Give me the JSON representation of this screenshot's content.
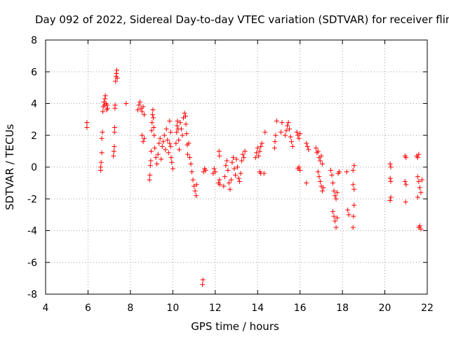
{
  "chart_data": {
    "type": "scatter",
    "title": "Day 092 of 2022, Sidereal Day-to-day VTEC variation (SDTVAR) for receiver flin",
    "xlabel": "GPS time / hours",
    "ylabel": "SDTVAR / TECUs",
    "xlim": [
      4,
      22
    ],
    "ylim": [
      -8,
      8
    ],
    "xticks": [
      4,
      6,
      8,
      10,
      12,
      14,
      16,
      18,
      20,
      22
    ],
    "yticks": [
      -8,
      -6,
      -4,
      -2,
      0,
      2,
      4,
      6,
      8
    ],
    "grid": true,
    "marker": "+",
    "color": "#ff0000",
    "points": [
      [
        5.95,
        2.5
      ],
      [
        5.95,
        2.8
      ],
      [
        6.6,
        0.0
      ],
      [
        6.6,
        -0.2
      ],
      [
        6.62,
        0.3
      ],
      [
        6.65,
        0.9
      ],
      [
        6.65,
        1.8
      ],
      [
        6.68,
        2.2
      ],
      [
        6.7,
        3.5
      ],
      [
        6.72,
        3.8
      ],
      [
        6.75,
        4.1
      ],
      [
        6.78,
        3.9
      ],
      [
        6.8,
        4.3
      ],
      [
        6.82,
        4.5
      ],
      [
        6.85,
        4.0
      ],
      [
        6.88,
        3.6
      ],
      [
        6.9,
        3.9
      ],
      [
        6.92,
        3.7
      ],
      [
        7.2,
        0.7
      ],
      [
        7.22,
        1.0
      ],
      [
        7.24,
        1.3
      ],
      [
        7.25,
        2.2
      ],
      [
        7.26,
        2.5
      ],
      [
        7.27,
        3.7
      ],
      [
        7.28,
        3.9
      ],
      [
        7.3,
        5.4
      ],
      [
        7.32,
        5.7
      ],
      [
        7.34,
        5.9
      ],
      [
        7.36,
        6.1
      ],
      [
        7.38,
        5.6
      ],
      [
        7.8,
        4.0
      ],
      [
        8.35,
        3.6
      ],
      [
        8.4,
        3.9
      ],
      [
        8.45,
        4.1
      ],
      [
        8.5,
        3.7
      ],
      [
        8.55,
        3.5
      ],
      [
        8.6,
        3.8
      ],
      [
        8.65,
        3.3
      ],
      [
        8.55,
        2.0
      ],
      [
        8.6,
        1.6
      ],
      [
        8.65,
        1.8
      ],
      [
        8.9,
        -0.8
      ],
      [
        8.92,
        -0.5
      ],
      [
        8.94,
        0.1
      ],
      [
        8.96,
        0.4
      ],
      [
        8.98,
        1.0
      ],
      [
        9.0,
        2.3
      ],
      [
        9.02,
        2.8
      ],
      [
        9.04,
        3.3
      ],
      [
        9.06,
        3.6
      ],
      [
        9.08,
        3.1
      ],
      [
        9.1,
        2.5
      ],
      [
        9.12,
        2.0
      ],
      [
        9.15,
        1.2
      ],
      [
        9.2,
        0.6
      ],
      [
        9.25,
        0.2
      ],
      [
        9.3,
        0.8
      ],
      [
        9.35,
        1.5
      ],
      [
        9.4,
        1.8
      ],
      [
        9.45,
        0.5
      ],
      [
        9.5,
        1.3
      ],
      [
        9.55,
        1.6
      ],
      [
        9.6,
        2.0
      ],
      [
        9.65,
        1.1
      ],
      [
        9.7,
        2.4
      ],
      [
        9.75,
        1.7
      ],
      [
        9.8,
        0.9
      ],
      [
        9.85,
        1.5
      ],
      [
        9.9,
        2.2
      ],
      [
        9.95,
        0.3
      ],
      [
        10.0,
        -0.1
      ],
      [
        9.85,
        2.9
      ],
      [
        9.9,
        1.3
      ],
      [
        9.92,
        0.6
      ],
      [
        10.15,
        1.5
      ],
      [
        10.18,
        2.2
      ],
      [
        10.2,
        2.6
      ],
      [
        10.22,
        2.9
      ],
      [
        10.25,
        2.4
      ],
      [
        10.28,
        1.7
      ],
      [
        10.3,
        1.1
      ],
      [
        10.35,
        2.8
      ],
      [
        10.4,
        2.4
      ],
      [
        10.45,
        2.0
      ],
      [
        10.5,
        3.1
      ],
      [
        10.55,
        3.4
      ],
      [
        10.6,
        3.2
      ],
      [
        10.62,
        2.7
      ],
      [
        10.65,
        2.1
      ],
      [
        10.68,
        1.4
      ],
      [
        10.7,
        0.8
      ],
      [
        10.75,
        1.5
      ],
      [
        10.8,
        0.6
      ],
      [
        10.85,
        0.2
      ],
      [
        10.9,
        -0.3
      ],
      [
        10.95,
        -0.8
      ],
      [
        11.0,
        -1.2
      ],
      [
        11.05,
        -1.5
      ],
      [
        11.1,
        -1.8
      ],
      [
        11.12,
        -1.1
      ],
      [
        11.4,
        -7.4
      ],
      [
        11.42,
        -7.1
      ],
      [
        11.45,
        -0.3
      ],
      [
        11.5,
        -0.1
      ],
      [
        11.55,
        -0.2
      ],
      [
        11.9,
        -0.4
      ],
      [
        11.95,
        -0.1
      ],
      [
        12.0,
        -0.3
      ],
      [
        12.15,
        -1.0
      ],
      [
        12.2,
        -0.8
      ],
      [
        12.22,
        -1.1
      ],
      [
        12.18,
        1.0
      ],
      [
        12.2,
        0.7
      ],
      [
        12.4,
        -1.2
      ],
      [
        12.45,
        -0.6
      ],
      [
        12.5,
        0.1
      ],
      [
        12.55,
        0.4
      ],
      [
        12.6,
        -0.2
      ],
      [
        12.65,
        -1.0
      ],
      [
        12.7,
        -1.4
      ],
      [
        12.75,
        -0.8
      ],
      [
        12.8,
        0.3
      ],
      [
        12.85,
        0.6
      ],
      [
        12.9,
        -0.1
      ],
      [
        12.95,
        -0.5
      ],
      [
        13.0,
        0.5
      ],
      [
        13.05,
        0.0
      ],
      [
        13.1,
        -0.7
      ],
      [
        13.15,
        -0.9
      ],
      [
        13.2,
        -0.4
      ],
      [
        13.25,
        0.4
      ],
      [
        13.3,
        0.8
      ],
      [
        13.35,
        0.6
      ],
      [
        13.4,
        1.0
      ],
      [
        13.9,
        0.6
      ],
      [
        13.95,
        0.9
      ],
      [
        14.0,
        1.2
      ],
      [
        14.05,
        0.7
      ],
      [
        14.1,
        1.0
      ],
      [
        14.15,
        1.3
      ],
      [
        14.2,
        1.5
      ],
      [
        14.1,
        -0.3
      ],
      [
        14.15,
        -0.4
      ],
      [
        14.3,
        -0.4
      ],
      [
        14.35,
        2.2
      ],
      [
        14.8,
        1.2
      ],
      [
        14.82,
        1.6
      ],
      [
        14.85,
        2.0
      ],
      [
        14.9,
        2.9
      ],
      [
        15.1,
        2.2
      ],
      [
        15.15,
        2.8
      ],
      [
        15.3,
        2.0
      ],
      [
        15.35,
        2.3
      ],
      [
        15.4,
        2.6
      ],
      [
        15.45,
        2.8
      ],
      [
        15.5,
        2.4
      ],
      [
        15.55,
        1.9
      ],
      [
        15.6,
        1.6
      ],
      [
        15.65,
        1.3
      ],
      [
        15.85,
        2.2
      ],
      [
        15.9,
        2.0
      ],
      [
        15.95,
        1.8
      ],
      [
        16.0,
        2.1
      ],
      [
        15.9,
        -0.1
      ],
      [
        15.95,
        0.0
      ],
      [
        16.0,
        -0.2
      ],
      [
        16.3,
        1.5
      ],
      [
        16.35,
        1.3
      ],
      [
        16.4,
        1.1
      ],
      [
        16.3,
        -1.0
      ],
      [
        16.75,
        1.2
      ],
      [
        16.8,
        0.9
      ],
      [
        16.85,
        1.0
      ],
      [
        16.9,
        0.6
      ],
      [
        16.95,
        0.4
      ],
      [
        17.0,
        0.7
      ],
      [
        17.05,
        0.2
      ],
      [
        16.85,
        -0.3
      ],
      [
        16.9,
        -0.6
      ],
      [
        16.95,
        -0.9
      ],
      [
        17.0,
        -1.2
      ],
      [
        17.05,
        -1.5
      ],
      [
        17.1,
        -1.3
      ],
      [
        17.45,
        -0.2
      ],
      [
        17.5,
        -0.5
      ],
      [
        17.55,
        -1.0
      ],
      [
        17.6,
        -1.5
      ],
      [
        17.65,
        -1.8
      ],
      [
        17.7,
        -2.0
      ],
      [
        17.75,
        -1.6
      ],
      [
        17.55,
        -2.8
      ],
      [
        17.6,
        -3.1
      ],
      [
        17.65,
        -3.4
      ],
      [
        17.7,
        -3.8
      ],
      [
        17.75,
        -3.2
      ],
      [
        17.8,
        -0.4
      ],
      [
        17.85,
        -0.3
      ],
      [
        18.2,
        -0.3
      ],
      [
        18.25,
        -2.7
      ],
      [
        18.3,
        -3.0
      ],
      [
        18.5,
        -3.8
      ],
      [
        18.52,
        -3.1
      ],
      [
        18.55,
        -2.4
      ],
      [
        18.5,
        -0.2
      ],
      [
        18.55,
        0.1
      ],
      [
        18.5,
        -1.1
      ],
      [
        18.55,
        -1.4
      ],
      [
        20.25,
        0.2
      ],
      [
        20.28,
        0.0
      ],
      [
        20.25,
        -0.7
      ],
      [
        20.28,
        -0.9
      ],
      [
        20.25,
        -2.1
      ],
      [
        20.28,
        -1.9
      ],
      [
        20.95,
        0.7
      ],
      [
        21.0,
        0.6
      ],
      [
        20.95,
        -0.9
      ],
      [
        21.0,
        -1.1
      ],
      [
        20.98,
        -2.2
      ],
      [
        21.5,
        0.7
      ],
      [
        21.55,
        0.6
      ],
      [
        21.6,
        0.8
      ],
      [
        21.55,
        -0.6
      ],
      [
        21.6,
        -0.9
      ],
      [
        21.65,
        -1.3
      ],
      [
        21.7,
        -1.6
      ],
      [
        21.75,
        -0.8
      ],
      [
        21.55,
        -1.9
      ],
      [
        21.6,
        -3.8
      ],
      [
        21.65,
        -3.7
      ],
      [
        21.7,
        -3.9
      ]
    ]
  }
}
